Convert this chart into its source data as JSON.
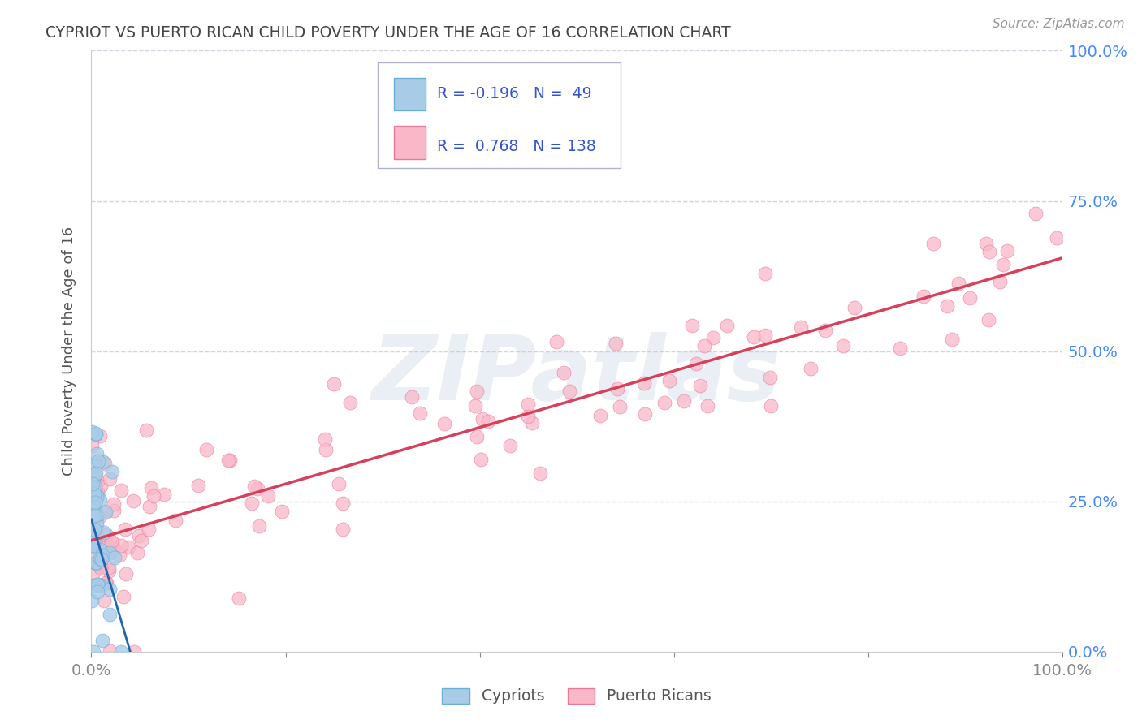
{
  "title": "CYPRIOT VS PUERTO RICAN CHILD POVERTY UNDER THE AGE OF 16 CORRELATION CHART",
  "source": "Source: ZipAtlas.com",
  "ylabel": "Child Poverty Under the Age of 16",
  "xlim": [
    0,
    1.0
  ],
  "ylim": [
    0,
    1.0
  ],
  "legend_label1": "Cypriots",
  "legend_label2": "Puerto Ricans",
  "cypriot_color": "#a8cce8",
  "cypriot_edge_color": "#6aaed6",
  "cypriot_line_color": "#2166ac",
  "puerto_rican_color": "#f9b8c8",
  "puerto_rican_edge_color": "#e87898",
  "puerto_rican_line_color": "#d6405a",
  "legend_text_color": "#3355cc",
  "title_color": "#444444",
  "axis_label_color": "#555555",
  "tick_color_right": "#4488ff",
  "background_color": "#ffffff",
  "grid_color": "#c8c8d8",
  "watermark": "ZIPatlas",
  "pr_trend_x0": 0.0,
  "pr_trend_y0": 0.185,
  "pr_trend_x1": 1.0,
  "pr_trend_y1": 0.655,
  "cy_trend_x0": 0.0,
  "cy_trend_y0": 0.22,
  "cy_trend_x1": 0.04,
  "cy_trend_y1": 0.0
}
